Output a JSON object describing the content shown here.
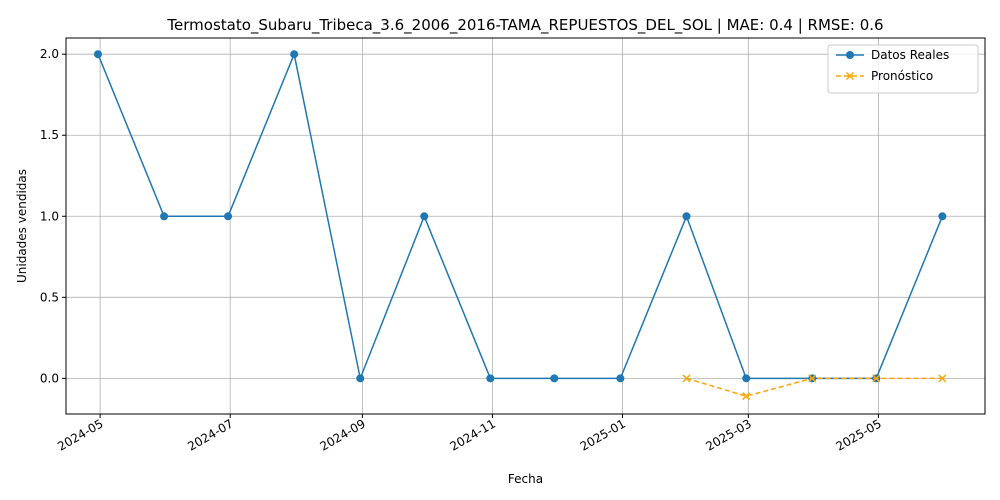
{
  "chart_data": {
    "type": "line",
    "title": "Termostato_Subaru_Tribeca_3.6_2006_2016-TAMA_REPUESTOS_DEL_SOL | MAE: 0.4 | RMSE: 0.6",
    "xlabel": "Fecha",
    "ylabel": "Unidades vendidas",
    "xlim": [
      "2024-04-15",
      "2025-06-20"
    ],
    "ylim": [
      -0.22,
      2.1
    ],
    "x_ticks": [
      "2024-05",
      "2024-07",
      "2024-09",
      "2024-11",
      "2025-01",
      "2025-03",
      "2025-05"
    ],
    "y_ticks": [
      "0.0",
      "0.5",
      "1.0",
      "1.5",
      "2.0"
    ],
    "grid": true,
    "legend_position": "top-right",
    "series": [
      {
        "name": "Datos Reales",
        "color": "#1f77b4",
        "marker": "circle",
        "line_style": "solid",
        "x": [
          "2024-04-30",
          "2024-05-31",
          "2024-06-30",
          "2024-07-31",
          "2024-08-31",
          "2024-09-30",
          "2024-10-31",
          "2024-11-30",
          "2024-12-31",
          "2025-01-31",
          "2025-02-28",
          "2025-03-31",
          "2025-04-30",
          "2025-05-31"
        ],
        "values": [
          2,
          1,
          1,
          2,
          0,
          1,
          0,
          0,
          0,
          1,
          0,
          0,
          0,
          1
        ]
      },
      {
        "name": "Pronóstico",
        "color": "#ffa500",
        "marker": "x",
        "line_style": "dashed",
        "x": [
          "2025-01-31",
          "2025-02-28",
          "2025-03-31",
          "2025-04-30",
          "2025-05-31"
        ],
        "values": [
          0.0,
          -0.11,
          0.0,
          0.0,
          0.0
        ]
      }
    ]
  }
}
